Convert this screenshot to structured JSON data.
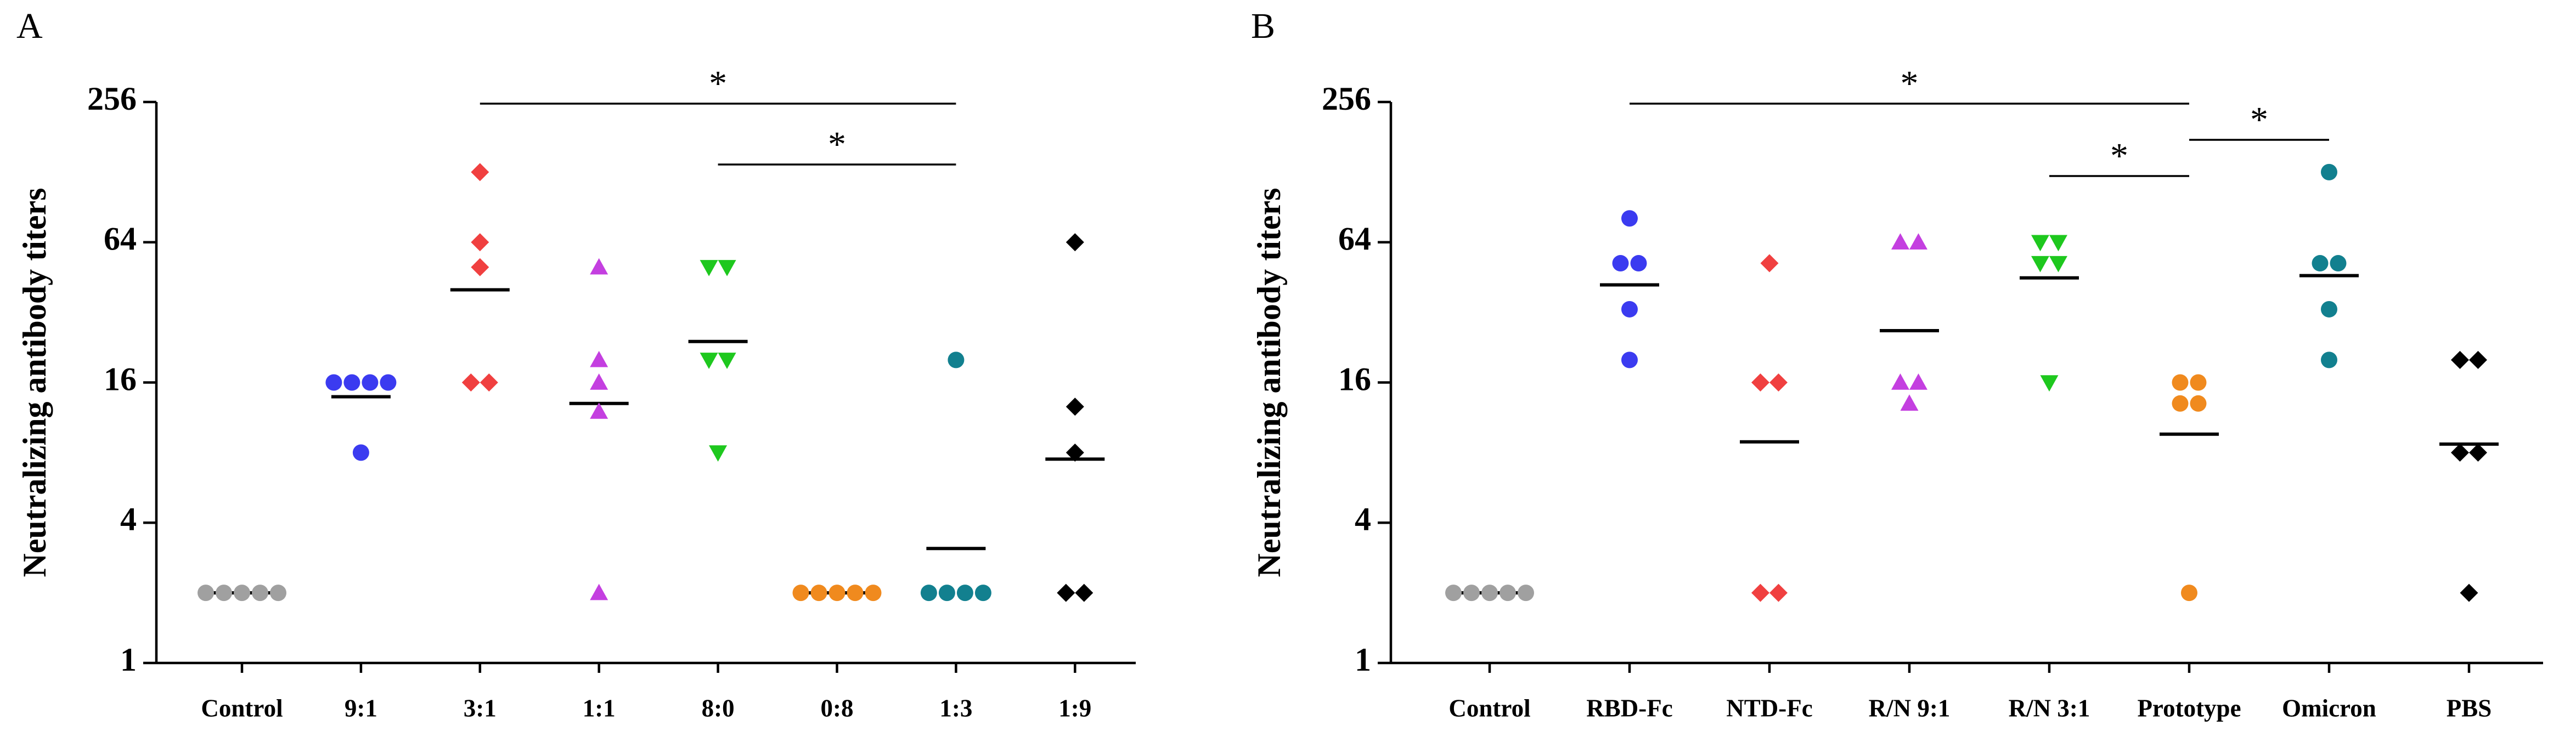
{
  "chart_data": [
    {
      "type": "dot",
      "panel_label": "A",
      "ylabel": "Neutralizing antibody titers",
      "yscale": "log",
      "ylim": [
        1,
        256
      ],
      "yticks": [
        1,
        4,
        16,
        64,
        256
      ],
      "categories": [
        "Control",
        "9:1",
        "3:1",
        "1:1",
        "8:0",
        "0:8",
        "1:3",
        "1:9"
      ],
      "colors": [
        "#a0a0a0",
        "#3b3bf0",
        "#f04040",
        "#c43fe0",
        "#1ec81e",
        "#f08a1e",
        "#12808f",
        "#000000"
      ],
      "markers": [
        "circle",
        "circle",
        "diamond",
        "triangle",
        "down-triangle",
        "circle",
        "circle",
        "diamond"
      ],
      "values": [
        [
          2,
          2,
          2,
          2,
          2
        ],
        [
          16,
          16,
          16,
          16,
          8
        ],
        [
          128,
          64,
          50,
          16,
          16
        ],
        [
          50,
          20,
          16,
          12,
          2
        ],
        [
          50,
          50,
          20,
          20,
          8
        ],
        [
          2,
          2,
          2,
          2,
          2
        ],
        [
          20,
          2,
          2,
          2,
          2
        ],
        [
          64,
          12.6,
          8,
          2,
          2
        ]
      ],
      "means": [
        2,
        13.9,
        40,
        13,
        24,
        2,
        3.1,
        7.5
      ],
      "comparisons": [
        {
          "from": 2,
          "to": 6,
          "label": "*"
        },
        {
          "from": 4,
          "to": 6,
          "label": "*"
        }
      ]
    },
    {
      "type": "dot",
      "panel_label": "B",
      "ylabel": "Neutralizing antibody titers",
      "yscale": "log",
      "ylim": [
        1,
        256
      ],
      "yticks": [
        1,
        4,
        16,
        64,
        256
      ],
      "categories": [
        "Control",
        "RBD-Fc",
        "NTD-Fc",
        "R/N 9:1",
        "R/N 3:1",
        "Prototype",
        "Omicron",
        "PBS"
      ],
      "colors": [
        "#a0a0a0",
        "#3b3bf0",
        "#f04040",
        "#c43fe0",
        "#1ec81e",
        "#f08a1e",
        "#12808f",
        "#000000"
      ],
      "markers": [
        "circle",
        "circle",
        "diamond",
        "triangle",
        "down-triangle",
        "circle",
        "circle",
        "diamond"
      ],
      "values": [
        [
          2,
          2,
          2,
          2,
          2
        ],
        [
          81,
          52,
          52,
          33,
          20
        ],
        [
          52,
          16,
          16,
          2,
          2
        ],
        [
          64,
          64,
          16,
          16,
          13
        ],
        [
          64,
          64,
          52,
          52,
          16
        ],
        [
          16,
          16,
          13,
          13,
          2
        ],
        [
          128,
          52,
          52,
          33,
          20
        ],
        [
          20,
          20,
          8,
          8,
          2
        ]
      ],
      "means": [
        2,
        42,
        8.9,
        26.7,
        45,
        9.6,
        46,
        8.7
      ],
      "comparisons": [
        {
          "from": 1,
          "to": 5,
          "label": "*"
        },
        {
          "from": 5,
          "to": 6,
          "label": "*"
        },
        {
          "from": 4,
          "to": 5,
          "label": "*"
        }
      ]
    }
  ]
}
